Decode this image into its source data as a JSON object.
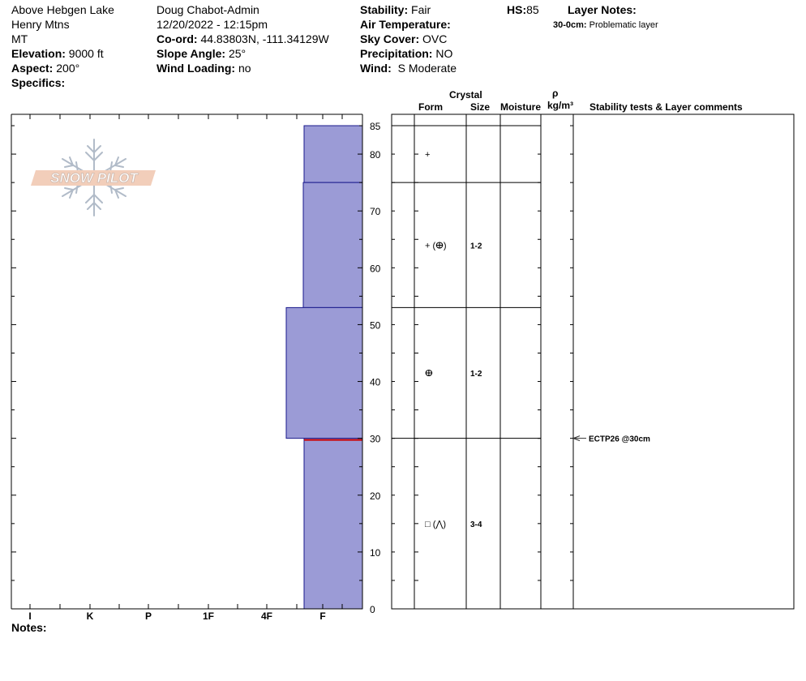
{
  "info": {
    "location": "Above Hebgen Lake",
    "range": "Henry Mtns",
    "state": "MT",
    "elevation_label": "Elevation:",
    "elevation": "9000 ft",
    "aspect_label": "Aspect:",
    "aspect": "200°",
    "specifics_label": "Specifics:",
    "observer": "Doug Chabot-Admin",
    "datetime": "12/20/2022 - 12:15pm",
    "coord_label": "Co-ord:",
    "coord": "44.83803N, -111.34129W",
    "slope_label": "Slope Angle:",
    "slope": "25°",
    "wind_loading_label": "Wind Loading:",
    "wind_loading": "no",
    "stability_label": "Stability:",
    "stability": "Fair",
    "air_temp_label": "Air Temperature:",
    "sky_label": "Sky Cover:",
    "sky": "OVC",
    "precip_label": "Precipitation:",
    "precip": "NO",
    "wind_label": "Wind:",
    "wind": "S Moderate",
    "hs_label": "HS:",
    "hs": "85",
    "layer_notes_label": "Layer Notes:",
    "layer_note_depth": "30-0cm:",
    "layer_note_text": "Problematic layer"
  },
  "logo": {
    "text": "SNOW PILOT"
  },
  "columns": {
    "crystal": "Crystal",
    "form": "Form",
    "size": "Size",
    "moisture": "Moisture",
    "rho": "ρ",
    "density_unit": "kg/m³",
    "stability_comments": "Stability tests & Layer comments"
  },
  "notes_label": "Notes:",
  "chart_data": {
    "type": "bar",
    "orientation": "horizontal",
    "y_axis": {
      "ylim": [
        0,
        85
      ],
      "ticks": [
        0,
        10,
        20,
        30,
        40,
        50,
        60,
        70,
        80,
        85
      ]
    },
    "x_axis": {
      "categories": [
        "I",
        "K",
        "P",
        "1F",
        "4F",
        "F"
      ]
    },
    "hardness_levels": [
      "I",
      "K",
      "P",
      "1F",
      "4F",
      "F"
    ],
    "layers": [
      {
        "top": 85,
        "bottom": 75,
        "hardness": "F",
        "form": "+",
        "size": ""
      },
      {
        "top": 75,
        "bottom": 53,
        "hardness": "F+",
        "form": "+ (ⴲ)",
        "size": "1-2"
      },
      {
        "top": 53,
        "bottom": 30,
        "hardness": "4F-",
        "form": "ⴲ",
        "size": "1-2"
      },
      {
        "top": 30,
        "bottom": 0,
        "hardness": "F",
        "form": "□ (⋀)",
        "size": "3-4"
      }
    ],
    "tests": [
      {
        "depth": 30,
        "label": "ECTP26 @30cm"
      }
    ],
    "colors": {
      "layer_fill": "#9b9bd6",
      "layer_stroke": "#1a1a8c",
      "weak_layer": "#cc0000"
    }
  }
}
